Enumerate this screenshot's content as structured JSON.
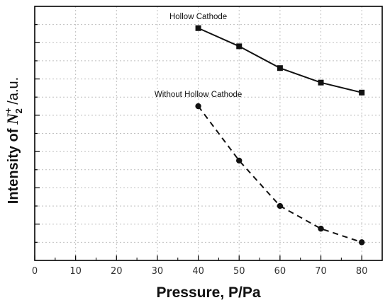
{
  "chart_data": {
    "type": "line",
    "x": [
      40,
      50,
      60,
      70,
      80
    ],
    "xlim": [
      0,
      85
    ],
    "xticks": [
      "0",
      "10",
      "20",
      "30",
      "40",
      "50",
      "60",
      "70",
      "80"
    ],
    "xlabel": "Pressure, P/Pa",
    "ylabel": {
      "prefix": "Intensity of ",
      "species": "N",
      "superscript": "+",
      "subscript": "2",
      "suffix": " /a.u."
    },
    "y_units": "relative",
    "ylim": [
      0,
      14
    ],
    "yticks_labeled": false,
    "grid": true,
    "series": [
      {
        "name": "Hollow Cathode",
        "values": [
          12.8,
          11.8,
          10.6,
          9.8,
          9.25
        ],
        "line_style": "solid",
        "marker": "square",
        "color": "#111111"
      },
      {
        "name": "Without Hollow Cathode",
        "values": [
          8.5,
          5.5,
          3.0,
          1.75,
          1.0
        ],
        "line_style": "dashed",
        "marker": "circle",
        "color": "#111111"
      }
    ]
  }
}
